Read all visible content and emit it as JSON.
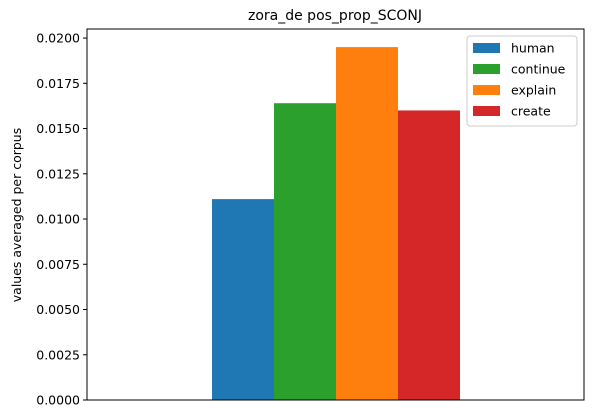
{
  "chart_data": {
    "type": "bar",
    "title": "zora_de pos_prop_SCONJ",
    "xlabel": "",
    "ylabel": "values averaged per corpus",
    "ylim": [
      0,
      0.0205
    ],
    "yticks": [
      0.0,
      0.0025,
      0.005,
      0.0075,
      0.01,
      0.0125,
      0.015,
      0.0175,
      0.02
    ],
    "ytick_labels": [
      "0.0000",
      "0.0025",
      "0.0050",
      "0.0075",
      "0.0100",
      "0.0125",
      "0.0150",
      "0.0175",
      "0.0200"
    ],
    "grid": false,
    "legend_position": "top-right",
    "series": [
      {
        "name": "human",
        "value": 0.0111,
        "color": "#1f77b4"
      },
      {
        "name": "continue",
        "value": 0.0164,
        "color": "#2ca02c"
      },
      {
        "name": "explain",
        "value": 0.0195,
        "color": "#ff7f0e"
      },
      {
        "name": "create",
        "value": 0.016,
        "color": "#d62728"
      }
    ]
  }
}
